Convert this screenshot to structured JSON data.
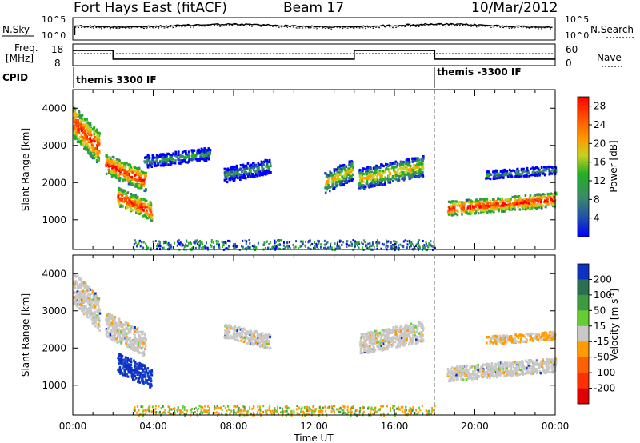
{
  "header": {
    "radar": "Fort Hays East (fitACF)",
    "beam": "Beam 17",
    "date": "10/Mar/2012"
  },
  "top_panels": {
    "nsky_label": "N.Sky",
    "nsky_ticks": [
      "10^5",
      "10^0"
    ],
    "nsearch_label": "N.Search",
    "nsearch_ticks": [
      "10^5",
      "10^0"
    ],
    "freq_label": "Freq.",
    "freq_unit": "[MHz]",
    "freq_ticks": [
      "18",
      "8"
    ],
    "nave_label": "Nave",
    "nave_ticks": [
      "60",
      "0"
    ],
    "cpid_label": "CPID",
    "cpid_segments": [
      {
        "label": "themis 3300 IF",
        "start_hour": 0,
        "end_hour": 18
      },
      {
        "label": "themis -3300 IF",
        "start_hour": 18,
        "end_hour": 24
      }
    ]
  },
  "chart_data": [
    {
      "type": "line",
      "name": "frequency-panel",
      "x_unit": "hours UT",
      "series": [
        {
          "x": [
            0,
            2,
            2,
            14,
            14,
            18,
            18,
            24
          ],
          "y": [
            15,
            15,
            11,
            11,
            15,
            15,
            11,
            11
          ]
        }
      ],
      "ylim": [
        8,
        18
      ]
    },
    {
      "type": "heatmap",
      "name": "power",
      "title": "",
      "xlabel": "Time UT",
      "ylabel": "Slant Range [km]",
      "xlim": [
        0,
        24
      ],
      "ylim": [
        200,
        4500
      ],
      "x_ticks": [
        "00:00",
        "04:00",
        "08:00",
        "12:00",
        "16:00",
        "20:00",
        "00:00"
      ],
      "y_ticks": [
        1000,
        2000,
        3000,
        4000
      ],
      "colorbar": {
        "label": "Power [dB]",
        "ticks": [
          "4",
          "8",
          "12",
          "16",
          "20",
          "24",
          "28"
        ],
        "range": [
          0,
          30
        ],
        "colors": [
          "#0000ff",
          "#2050a8",
          "#3a8a6a",
          "#22b022",
          "#c8d020",
          "#ff9a00",
          "#ff5000",
          "#ff0000"
        ]
      },
      "features": [
        {
          "t0": 0.0,
          "t1": 1.3,
          "r0": 2500,
          "r1": 4100,
          "level": "high"
        },
        {
          "t0": 1.6,
          "t1": 3.6,
          "r0": 1800,
          "r1": 2800,
          "level": "high"
        },
        {
          "t0": 2.2,
          "t1": 3.9,
          "r0": 1000,
          "r1": 1900,
          "level": "high"
        },
        {
          "t0": 3.5,
          "t1": 6.8,
          "r0": 2400,
          "r1": 3000,
          "level": "low"
        },
        {
          "t0": 7.5,
          "t1": 9.8,
          "r0": 2000,
          "r1": 2700,
          "level": "low"
        },
        {
          "t0": 12.5,
          "t1": 13.9,
          "r0": 1700,
          "r1": 2700,
          "level": "mid"
        },
        {
          "t0": 14.2,
          "t1": 17.4,
          "r0": 1800,
          "r1": 2800,
          "level": "mid"
        },
        {
          "t0": 18.6,
          "t1": 24.0,
          "r0": 1100,
          "r1": 1800,
          "level": "high"
        },
        {
          "t0": 20.5,
          "t1": 24.0,
          "r0": 2100,
          "r1": 2500,
          "level": "low"
        }
      ],
      "mode_change_hour": 18
    },
    {
      "type": "heatmap",
      "name": "velocity",
      "title": "",
      "xlabel": "Time UT",
      "ylabel": "Slant Range [km]",
      "xlim": [
        0,
        24
      ],
      "ylim": [
        200,
        4500
      ],
      "x_ticks": [
        "00:00",
        "04:00",
        "08:00",
        "12:00",
        "16:00",
        "20:00",
        "00:00"
      ],
      "y_ticks": [
        1000,
        2000,
        3000,
        4000
      ],
      "colorbar": {
        "label": "Velocity [m s^-1]",
        "ticks": [
          "200",
          "100",
          "50",
          "15",
          "-15",
          "-50",
          "-100",
          "-200"
        ],
        "colors": [
          "#1030c0",
          "#2a6f4f",
          "#3f9a3f",
          "#66cc33",
          "#c8c8c8",
          "#ff9a00",
          "#ff6000",
          "#ff3000",
          "#e00000"
        ]
      },
      "features": [
        {
          "t0": 0.0,
          "t1": 1.3,
          "r0": 2500,
          "r1": 4100,
          "level": "zero"
        },
        {
          "t0": 1.6,
          "t1": 3.6,
          "r0": 1800,
          "r1": 3000,
          "level": "zero"
        },
        {
          "t0": 2.2,
          "t1": 3.9,
          "r0": 950,
          "r1": 1900,
          "level": "pos200"
        },
        {
          "t0": 7.5,
          "t1": 9.8,
          "r0": 2000,
          "r1": 2700,
          "level": "zero"
        },
        {
          "t0": 14.2,
          "t1": 17.4,
          "r0": 1800,
          "r1": 2800,
          "level": "zero"
        },
        {
          "t0": 18.6,
          "t1": 24.0,
          "r0": 1100,
          "r1": 1800,
          "level": "zero"
        },
        {
          "t0": 20.5,
          "t1": 24.0,
          "r0": 2100,
          "r1": 2500,
          "level": "neg50"
        }
      ],
      "mode_change_hour": 18
    }
  ]
}
